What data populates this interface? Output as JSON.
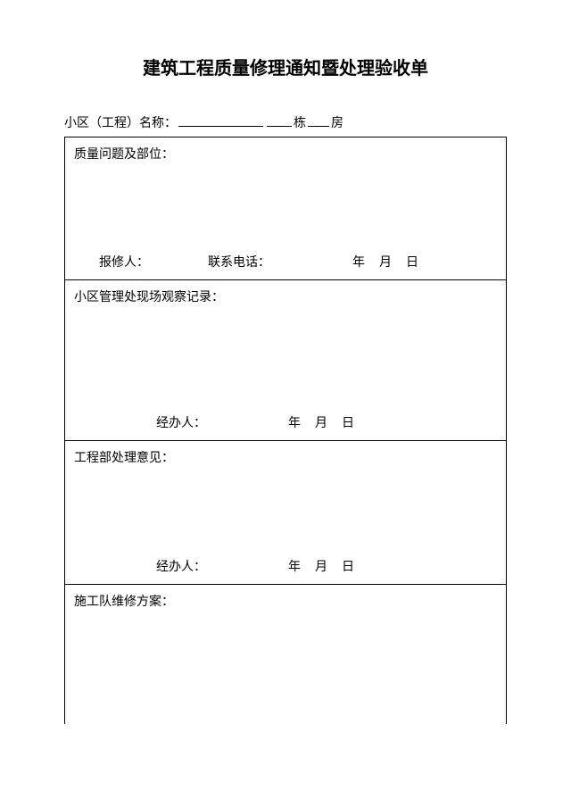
{
  "title": "建筑工程质量修理通知暨处理验收单",
  "header": {
    "label1": "小区（工程）名称：",
    "unit_building": "栋",
    "unit_room": "房"
  },
  "sections": {
    "s1": {
      "title": "质量问题及部位：",
      "reporter_label": "报修人：",
      "phone_label": "联系电话：",
      "date_y": "年",
      "date_m": "月",
      "date_d": "日"
    },
    "s2": {
      "title": "小区管理处现场观察记录：",
      "handler_label": "经办人：",
      "date_y": "年",
      "date_m": "月",
      "date_d": "日"
    },
    "s3": {
      "title": "工程部处理意见：",
      "handler_label": "经办人：",
      "date_y": "年",
      "date_m": "月",
      "date_d": "日"
    },
    "s4": {
      "title": "施工队维修方案："
    }
  }
}
